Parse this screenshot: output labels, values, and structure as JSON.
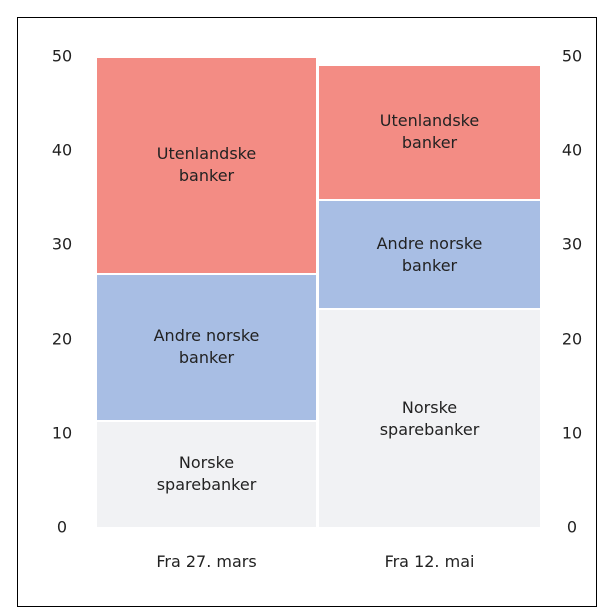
{
  "chart_data": {
    "type": "stacked_bar",
    "categories": [
      "Fra 27. mars",
      "Fra 12. mai"
    ],
    "series": [
      {
        "name": "Norske sparebanker",
        "color": "#f1f2f4",
        "values": [
          11.4,
          23.2
        ]
      },
      {
        "name": "Andre norske banker",
        "color": "#a8bee4",
        "values": [
          15.6,
          11.6
        ]
      },
      {
        "name": "Utenlandske banker",
        "color": "#f38c84",
        "values": [
          23,
          14.4
        ]
      }
    ],
    "ylim": [
      0,
      50
    ],
    "yticks": [
      0,
      10,
      20,
      30,
      40,
      50
    ],
    "grid": false
  }
}
